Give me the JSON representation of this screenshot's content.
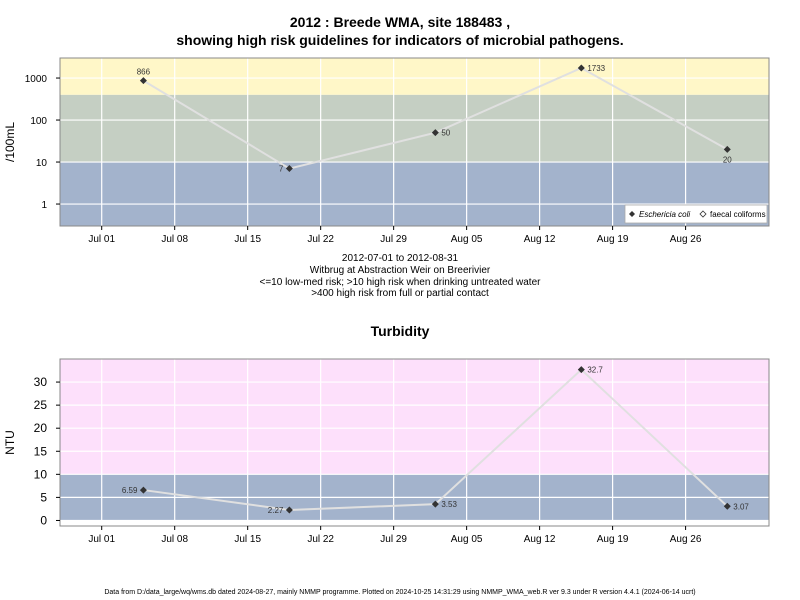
{
  "top_title_line1": "2012 : Breede WMA, site 188483 ,",
  "top_title_line2": "showing high risk guidelines for indicators of microbial pathogens.",
  "captions": [
    "2012-07-01 to 2012-08-31",
    "Witbrug at Abstraction Weir on Breerivier",
    "<=10 low-med risk; >10 high risk when drinking untreated water",
    ">400 high risk from full or partial contact"
  ],
  "footer": "Data from D:/data_large/wq/wms.db dated 2024-08-27, mainly NMMP programme. Plotted on 2024-10-25 14:31:29 using NMMP_WMA_web.R ver 9.3 under R version 4.4.1 (2024-06-14 ucrt)",
  "colors": {
    "band_low": "#a3b3cc",
    "band_mid": "#c5cfc3",
    "band_high": "#fff7c8",
    "band_turb_high": "#fde0fb",
    "line": "#e0e0e0",
    "grid": "#ffffff",
    "point": "#333333"
  },
  "chart_data": [
    {
      "type": "line",
      "title": "",
      "xlabel": "",
      "ylabel": "/100mL",
      "yscale": "log",
      "x_ticks": [
        "Jul 01",
        "Jul 08",
        "Jul 15",
        "Jul 22",
        "Jul 29",
        "Aug 05",
        "Aug 12",
        "Aug 19",
        "Aug 26"
      ],
      "y_ticks": [
        "1",
        "10",
        "100",
        "1000"
      ],
      "bands": [
        {
          "from": 0,
          "to": 10,
          "color": "#a3b3cc"
        },
        {
          "from": 10,
          "to": 400,
          "color": "#c5cfc3"
        },
        {
          "from": 400,
          "to": 3000,
          "color": "#fff7c8"
        }
      ],
      "series": [
        {
          "name": "Eschericia coli",
          "x": [
            "2012-07-05",
            "2012-07-19",
            "2012-08-02",
            "2012-08-16",
            "2012-08-30"
          ],
          "values": [
            866,
            7,
            50,
            1733,
            20
          ],
          "labels": [
            "866",
            "7",
            "50",
            "1733",
            "20"
          ]
        }
      ],
      "legend": [
        "Eschericia coli",
        "faecal coliforms"
      ],
      "legend_position": "bottom-right"
    },
    {
      "type": "line",
      "title": "Turbidity",
      "xlabel": "",
      "ylabel": "NTU",
      "ylim": [
        0,
        35
      ],
      "x_ticks": [
        "Jul 01",
        "Jul 08",
        "Jul 15",
        "Jul 22",
        "Jul 29",
        "Aug 05",
        "Aug 12",
        "Aug 19",
        "Aug 26"
      ],
      "y_ticks": [
        "0",
        "5",
        "10",
        "15",
        "20",
        "25",
        "30"
      ],
      "bands": [
        {
          "from": 0,
          "to": 10,
          "color": "#a3b3cc"
        },
        {
          "from": 10,
          "to": 35,
          "color": "#fde0fb"
        }
      ],
      "series": [
        {
          "x": [
            "2012-07-05",
            "2012-07-19",
            "2012-08-02",
            "2012-08-16",
            "2012-08-30"
          ],
          "values": [
            6.59,
            2.27,
            3.53,
            32.7,
            3.07
          ],
          "labels": [
            "6.59",
            "2.27",
            "3.53",
            "32.7",
            "3.07"
          ]
        }
      ]
    }
  ]
}
